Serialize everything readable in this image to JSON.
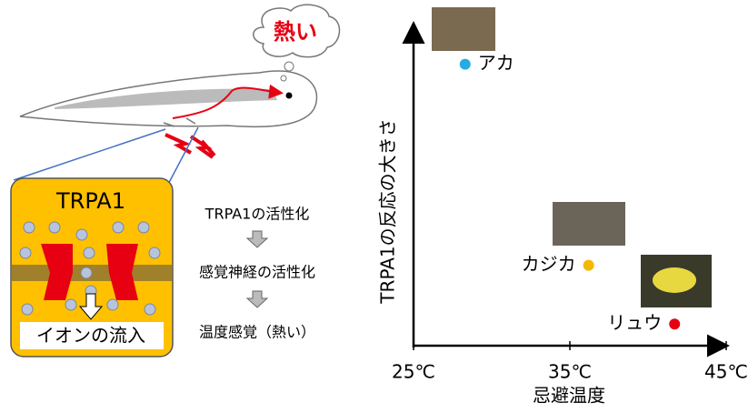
{
  "diagram": {
    "bubble": "熱い",
    "channel_title": "TRPA1",
    "channel_caption": "イオンの流入",
    "steps": [
      "TRPA1の活性化",
      "感覚神経の活性化",
      "温度感覚（熱い）"
    ]
  },
  "chart_data": {
    "type": "scatter",
    "xlabel": "忌避温度",
    "ylabel": "TRPA1の反応の大きさ",
    "xlim": [
      25,
      45
    ],
    "ylim": [
      0,
      10
    ],
    "xticks": [
      {
        "value": 25,
        "label": "25℃"
      },
      {
        "value": 35,
        "label": "35℃"
      },
      {
        "value": 45,
        "label": "45℃"
      }
    ],
    "series": [
      {
        "name": "アカ",
        "color": "#29abe2",
        "x": [
          28.3
        ],
        "values": [
          9.1
        ]
      },
      {
        "name": "カジカ",
        "color": "#f5b800",
        "x": [
          36.2
        ],
        "values": [
          2.6
        ]
      },
      {
        "name": "リュウ",
        "color": "#e60012",
        "x": [
          41.7
        ],
        "values": [
          0.7
        ]
      }
    ]
  }
}
